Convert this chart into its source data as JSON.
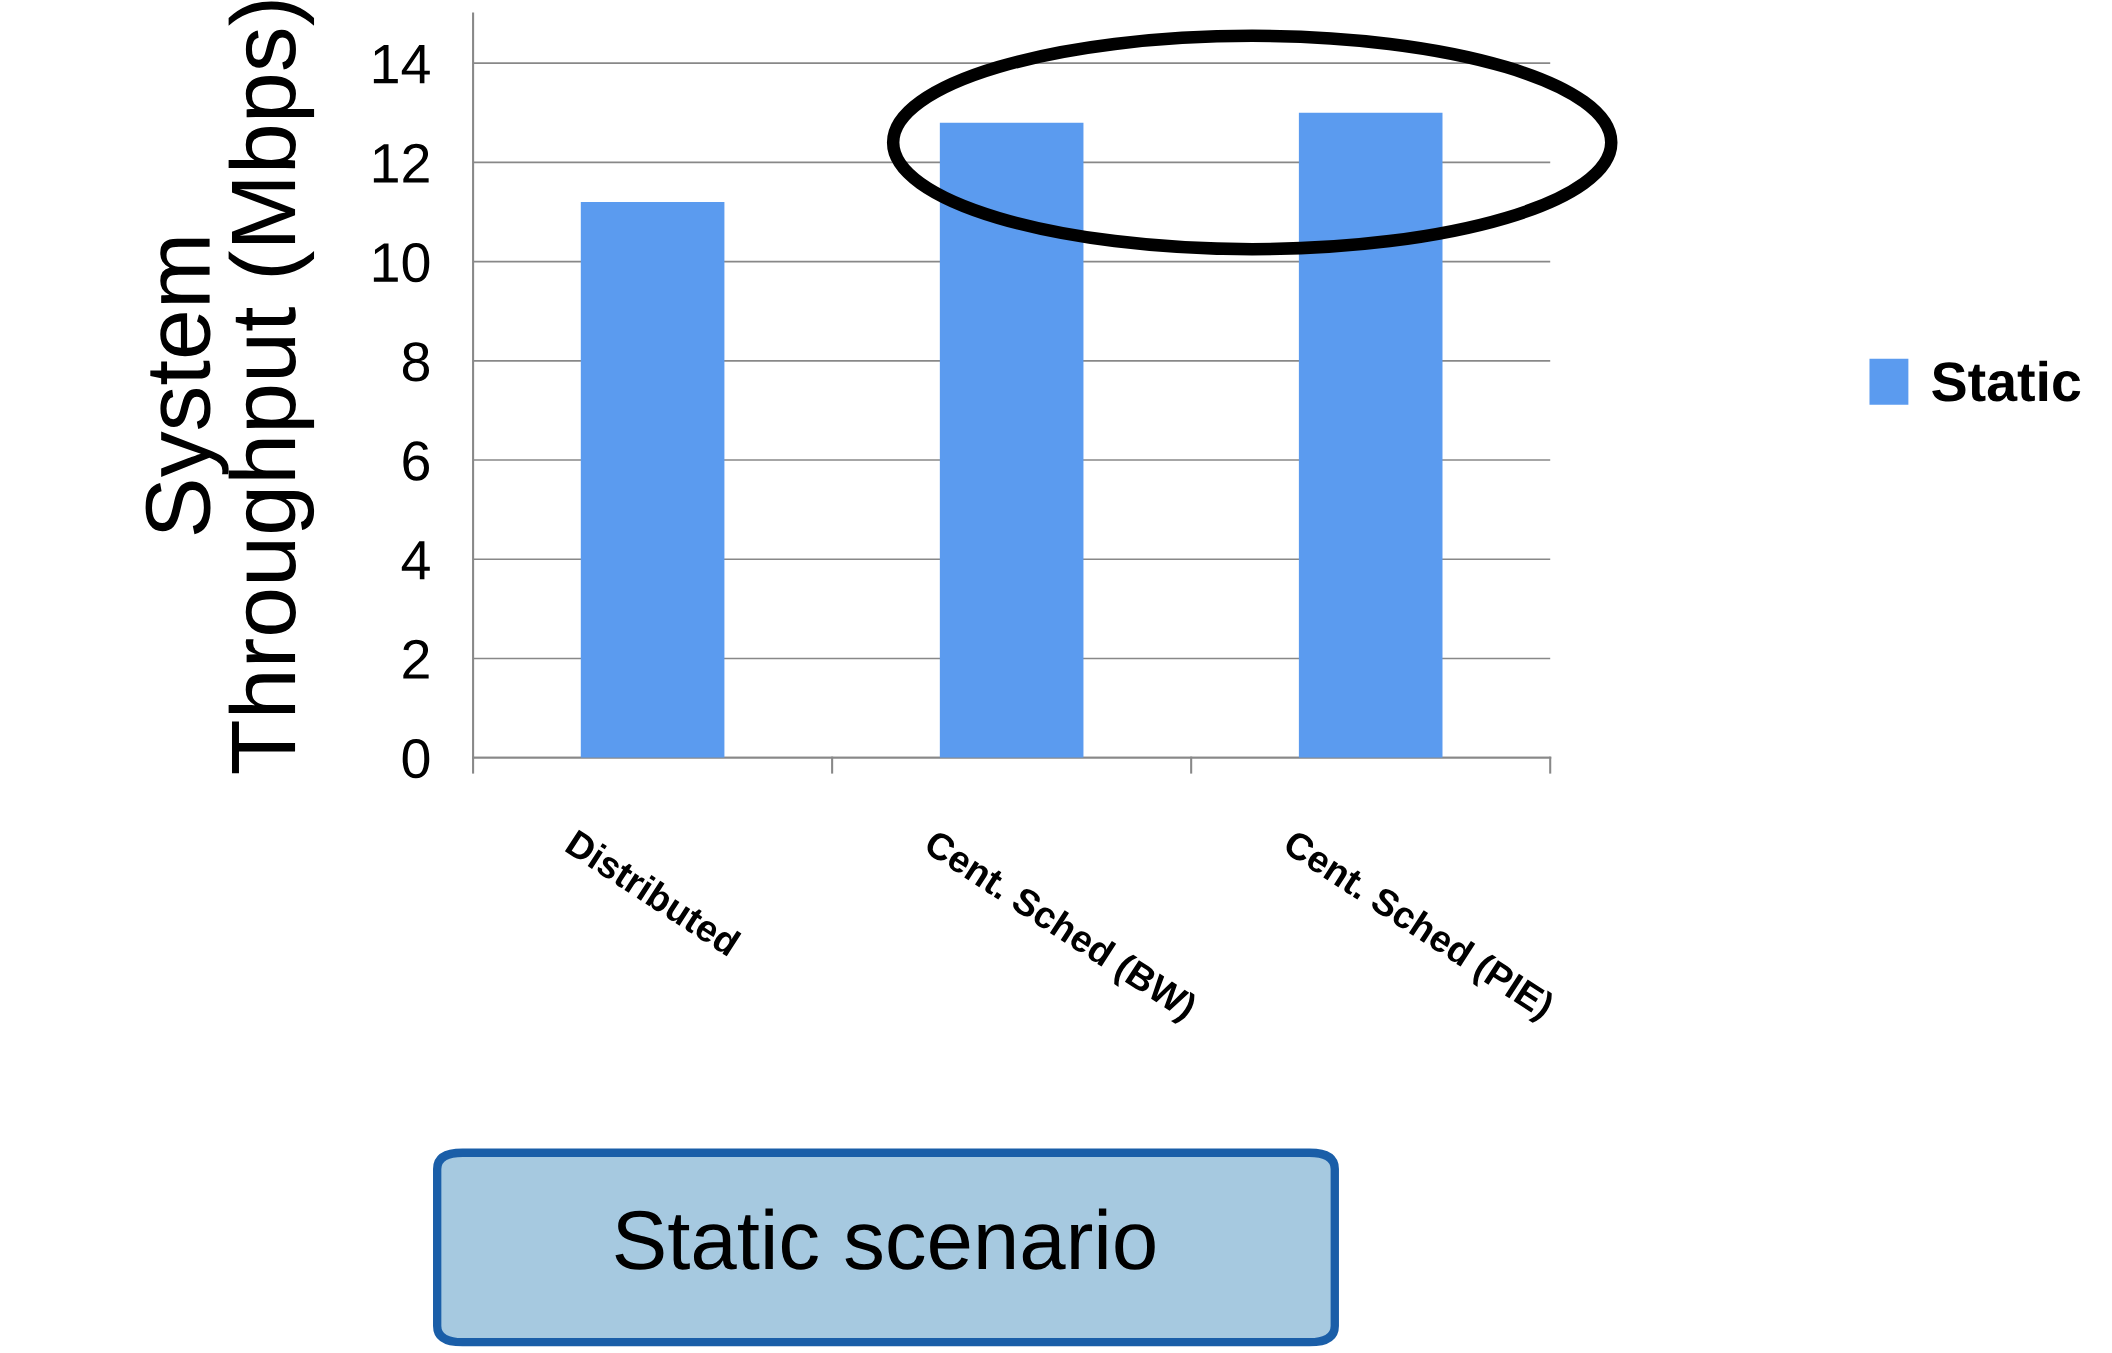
{
  "chart_data": {
    "type": "bar",
    "ylabel": "System\nThroughput (Mbps)",
    "categories": [
      "Distributed",
      "Cent. Sched (BW)",
      "Cent. Sched (PIE)"
    ],
    "series": [
      {
        "name": "Static",
        "color": "#5b9bef",
        "values": [
          11.2,
          12.8,
          13.0
        ]
      }
    ],
    "ylim": [
      0,
      15
    ],
    "yticks": [
      0,
      2,
      4,
      6,
      8,
      10,
      12,
      14
    ],
    "grid": "y",
    "legend": "right",
    "annotations": [
      "Static scenario"
    ]
  }
}
